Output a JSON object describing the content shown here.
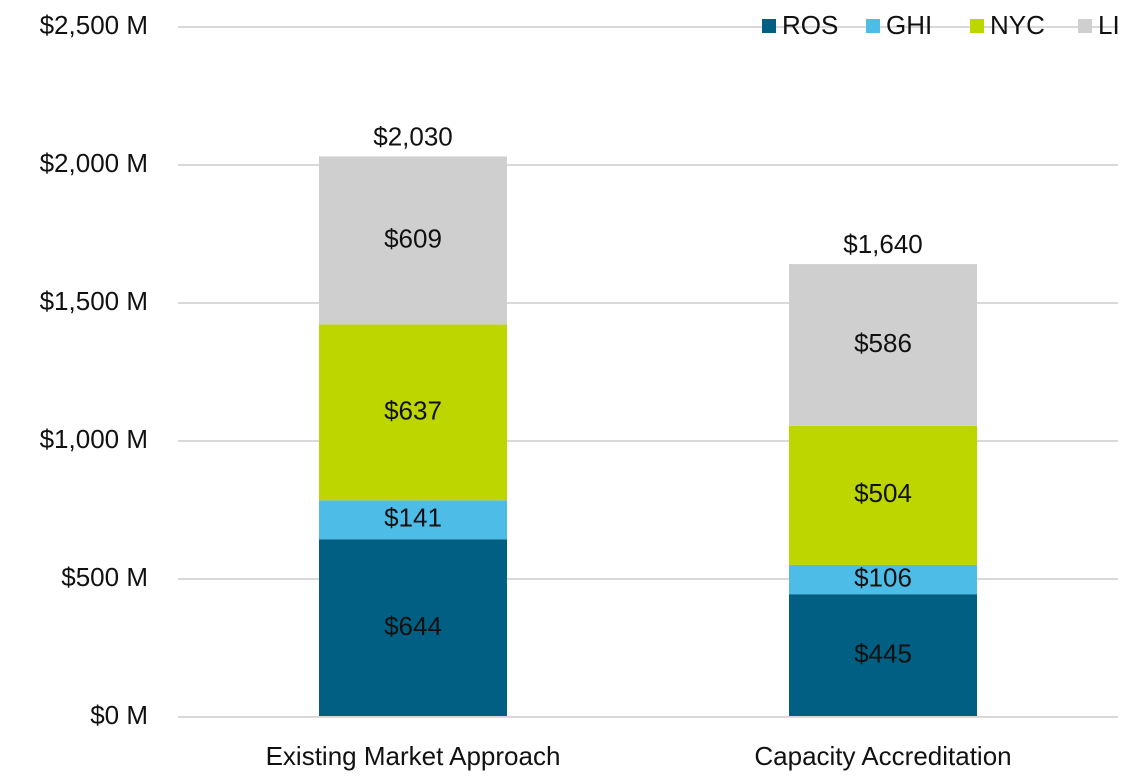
{
  "chart_data": {
    "type": "stacked_bar",
    "categories": [
      "Existing Market Approach",
      "Capacity Accreditation"
    ],
    "series": [
      {
        "name": "ROS",
        "color": "#005f83",
        "values": [
          644,
          445
        ],
        "value_labels": [
          "$644",
          "$445"
        ]
      },
      {
        "name": "GHI",
        "color": "#4dbde8",
        "values": [
          141,
          106
        ],
        "value_labels": [
          "$141",
          "$106"
        ]
      },
      {
        "name": "NYC",
        "color": "#bed600",
        "values": [
          637,
          504
        ],
        "value_labels": [
          "$637",
          "$504"
        ]
      },
      {
        "name": "LI",
        "color": "#cfcfcf",
        "values": [
          609,
          586
        ],
        "value_labels": [
          "$609",
          "$586"
        ]
      }
    ],
    "totals": {
      "values": [
        2030,
        1640
      ],
      "value_labels": [
        "$2,030",
        "$1,640"
      ]
    },
    "ylim": [
      0,
      2500
    ],
    "yticks": [
      {
        "value": 0,
        "label": "$0 M"
      },
      {
        "value": 500,
        "label": "$500 M"
      },
      {
        "value": 1000,
        "label": "$1,000 M"
      },
      {
        "value": 1500,
        "label": "$1,500 M"
      },
      {
        "value": 2000,
        "label": "$2,000 M"
      },
      {
        "value": 2500,
        "label": "$2,500 M"
      }
    ],
    "grid": true,
    "legend": "top-right"
  }
}
